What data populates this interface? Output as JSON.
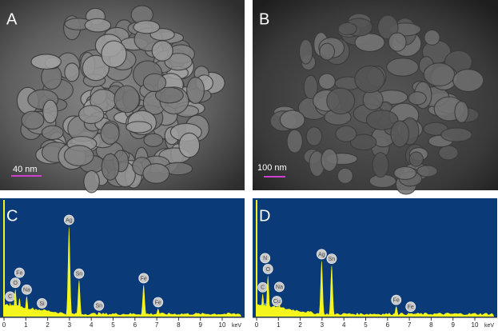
{
  "images": [
    {
      "label": "A",
      "scale_bar": "40 nm"
    },
    {
      "label": "B",
      "scale_bar": "100 nm"
    }
  ],
  "chart_data": [
    {
      "type": "spectrum",
      "label": "C",
      "x_unit": "keV",
      "xlim": [
        0,
        10.5
      ],
      "xticks": [
        0,
        1,
        2,
        3,
        4,
        5,
        6,
        7,
        8,
        9,
        10
      ],
      "ylim": [
        0,
        100
      ],
      "color": "#f5f51e",
      "background": "#0a3a78",
      "peaks": [
        {
          "element": "C",
          "energy": 0.28,
          "intensity": 12
        },
        {
          "element": "O",
          "energy": 0.52,
          "intensity": 24
        },
        {
          "element": "Fe",
          "energy": 0.71,
          "intensity": 16
        },
        {
          "element": "Na",
          "energy": 1.04,
          "intensity": 18
        },
        {
          "element": "Si",
          "energy": 1.74,
          "intensity": 6
        },
        {
          "element": "Ag",
          "energy": 2.98,
          "intensity": 79
        },
        {
          "element": "Sn",
          "energy": 3.44,
          "intensity": 32
        },
        {
          "element": "Sn",
          "energy": 4.35,
          "intensity": 4
        },
        {
          "element": "Fe",
          "energy": 6.4,
          "intensity": 28
        },
        {
          "element": "Fe",
          "energy": 7.06,
          "intensity": 7
        }
      ]
    },
    {
      "type": "spectrum",
      "label": "D",
      "x_unit": "keV",
      "xlim": [
        0,
        10.5
      ],
      "xticks": [
        0,
        1,
        2,
        3,
        4,
        5,
        6,
        7,
        8,
        9,
        10
      ],
      "ylim": [
        0,
        100
      ],
      "color": "#f5f51e",
      "background": "#0a3a78",
      "peaks": [
        {
          "element": "C",
          "energy": 0.28,
          "intensity": 20
        },
        {
          "element": "O",
          "energy": 0.52,
          "intensity": 36
        },
        {
          "element": "N",
          "energy": 0.39,
          "intensity": 12
        },
        {
          "element": "Cu",
          "energy": 0.93,
          "intensity": 8
        },
        {
          "element": "Na",
          "energy": 1.04,
          "intensity": 12
        },
        {
          "element": "Ag",
          "energy": 2.98,
          "intensity": 49
        },
        {
          "element": "Sn",
          "energy": 3.44,
          "intensity": 45
        },
        {
          "element": "Fe",
          "energy": 6.4,
          "intensity": 9
        },
        {
          "element": "Fe",
          "energy": 7.06,
          "intensity": 3
        }
      ]
    }
  ]
}
